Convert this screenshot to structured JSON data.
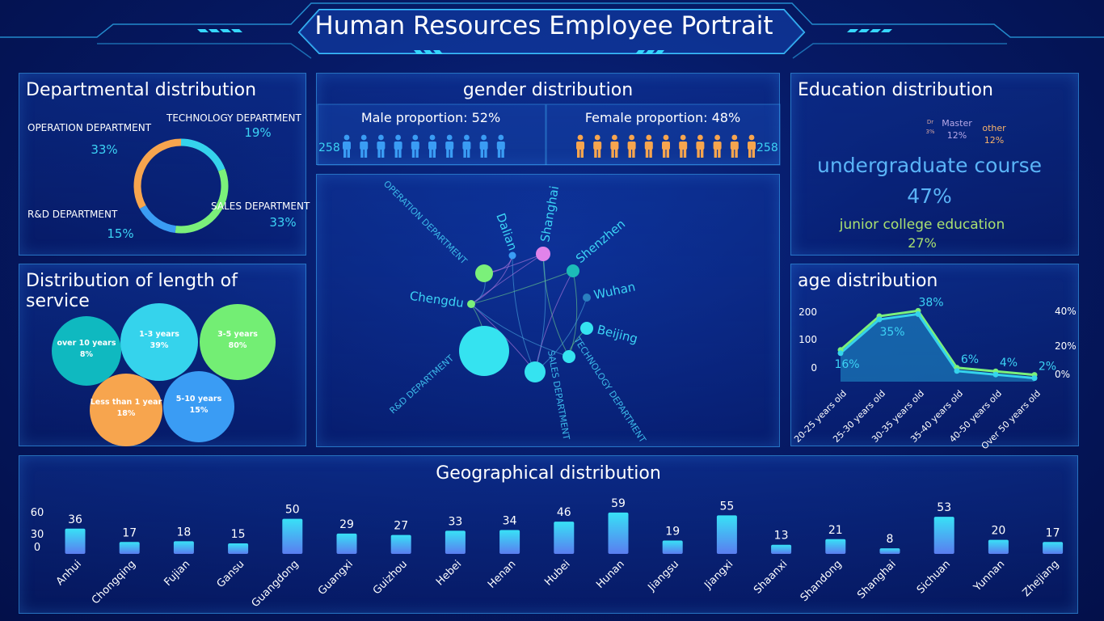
{
  "header": {
    "title": "Human Resources Employee Portrait"
  },
  "departments": {
    "title": "Departmental distribution",
    "items": [
      {
        "name": "TECHNOLOGY DEPARTMENT",
        "percent": "19%",
        "value": 19,
        "color": "#35d3ec"
      },
      {
        "name": "SALES DEPARTMENT",
        "percent": "33%",
        "value": 33,
        "color": "#7bf07a"
      },
      {
        "name": "R&D DEPARTMENT",
        "percent": "15%",
        "value": 15,
        "color": "#3a9cf4"
      },
      {
        "name": "OPERATION DEPARTMENT",
        "percent": "33%",
        "value": 33,
        "color": "#f7a54e"
      }
    ]
  },
  "service": {
    "title": "Distribution of length of service",
    "bubbles": [
      {
        "label": "over 10 years",
        "percent": "8%",
        "color": "#0fb9c0"
      },
      {
        "label": "1-3 years",
        "percent": "39%",
        "color": "#35d3ec"
      },
      {
        "label": "3-5 years",
        "percent": "80%",
        "color": "#73ee74"
      },
      {
        "label": "Less than 1 year",
        "percent": "18%",
        "color": "#f7a54e"
      },
      {
        "label": "5-10 years",
        "percent": "15%",
        "color": "#3a9cf4"
      }
    ]
  },
  "gender": {
    "title": "gender distribution",
    "male_label": "Male proportion: 52%",
    "female_label": "Female proportion: 48%",
    "male_count": "258",
    "female_count": "258",
    "male_color": "#3a9cf4",
    "female_color": "#f7a54e"
  },
  "network": {
    "nodes": [
      {
        "label": "OPERATION DEPARTMENT",
        "kind": "department",
        "color": "#7bf07a"
      },
      {
        "label": "R&D DEPARTMENT",
        "kind": "department",
        "color": "#35e3f0"
      },
      {
        "label": "SALES DEPARTMENT",
        "kind": "department",
        "color": "#35e3f0"
      },
      {
        "label": "TECHNOLOGY DEPARTMENT",
        "kind": "department",
        "color": "#35e3f0"
      },
      {
        "label": "Dalian",
        "kind": "city",
        "color": "#3a9cf4"
      },
      {
        "label": "Shanghai",
        "kind": "city",
        "color": "#e083ea"
      },
      {
        "label": "Shenzhen",
        "kind": "city",
        "color": "#1cbcb8"
      },
      {
        "label": "Wuhan",
        "kind": "city",
        "color": "#2a7fc0"
      },
      {
        "label": "Beijing",
        "kind": "city",
        "color": "#35e3f0"
      },
      {
        "label": "Chengdu",
        "kind": "city",
        "color": "#7bf07a"
      }
    ]
  },
  "education": {
    "title": "Education distribution",
    "items": [
      {
        "label": "Dr",
        "percent": "3%",
        "color": "#d4a5a0"
      },
      {
        "label": "Master",
        "percent": "12%",
        "color": "#b7a9e8"
      },
      {
        "label": "other",
        "percent": "12%",
        "color": "#f7b36a"
      },
      {
        "label": "undergraduate course",
        "percent": "47%",
        "color": "#5ab4f7"
      },
      {
        "label": "junior college education",
        "percent": "27%",
        "color": "#a9e070"
      }
    ]
  },
  "age": {
    "title": "age distribution",
    "y_left_ticks": [
      "0",
      "100",
      "200"
    ],
    "y_right_ticks": [
      "0%",
      "20%",
      "40%"
    ]
  },
  "geography": {
    "title": "Geographical distribution",
    "y_ticks": [
      "0",
      "30",
      "60"
    ]
  },
  "chart_data": [
    {
      "type": "pie",
      "title": "Departmental distribution",
      "categories": [
        "TECHNOLOGY DEPARTMENT",
        "SALES DEPARTMENT",
        "R&D DEPARTMENT",
        "OPERATION DEPARTMENT"
      ],
      "values": [
        19,
        33,
        15,
        33
      ]
    },
    {
      "type": "scatter",
      "title": "Distribution of length of service",
      "categories": [
        "over 10 years",
        "1-3 years",
        "3-5 years",
        "Less than 1 year",
        "5-10 years"
      ],
      "values": [
        8,
        39,
        80,
        18,
        15
      ]
    },
    {
      "type": "pie",
      "title": "Education distribution",
      "categories": [
        "Dr",
        "Master",
        "other",
        "undergraduate course",
        "junior college education"
      ],
      "values": [
        3,
        12,
        12,
        47,
        27
      ]
    },
    {
      "type": "line",
      "title": "age distribution",
      "categories": [
        "20-25 years old",
        "25-30 years old",
        "30-35 years old",
        "35-40 years old",
        "40-50 years old",
        "Over 50 years old"
      ],
      "series": [
        {
          "values": [
            16,
            35,
            38,
            6,
            4,
            2
          ]
        }
      ],
      "ylim_right": [
        0,
        40
      ],
      "ylim_left": [
        0,
        200
      ]
    },
    {
      "type": "bar",
      "title": "Geographical distribution",
      "categories": [
        "Anhui",
        "Chongqing",
        "Fujian",
        "Gansu",
        "Guangdong",
        "Guangxi",
        "Guizhou",
        "Hebei",
        "Henan",
        "Hubei",
        "Hunan",
        "Jiangsu",
        "Jiangxi",
        "Shaanxi",
        "Shandong",
        "Shanghai",
        "Sichuan",
        "Yunnan",
        "Zhejiang"
      ],
      "values": [
        36,
        17,
        18,
        15,
        50,
        29,
        27,
        33,
        34,
        46,
        59,
        19,
        55,
        13,
        21,
        8,
        53,
        20,
        17
      ],
      "ylim": [
        0,
        60
      ]
    }
  ]
}
